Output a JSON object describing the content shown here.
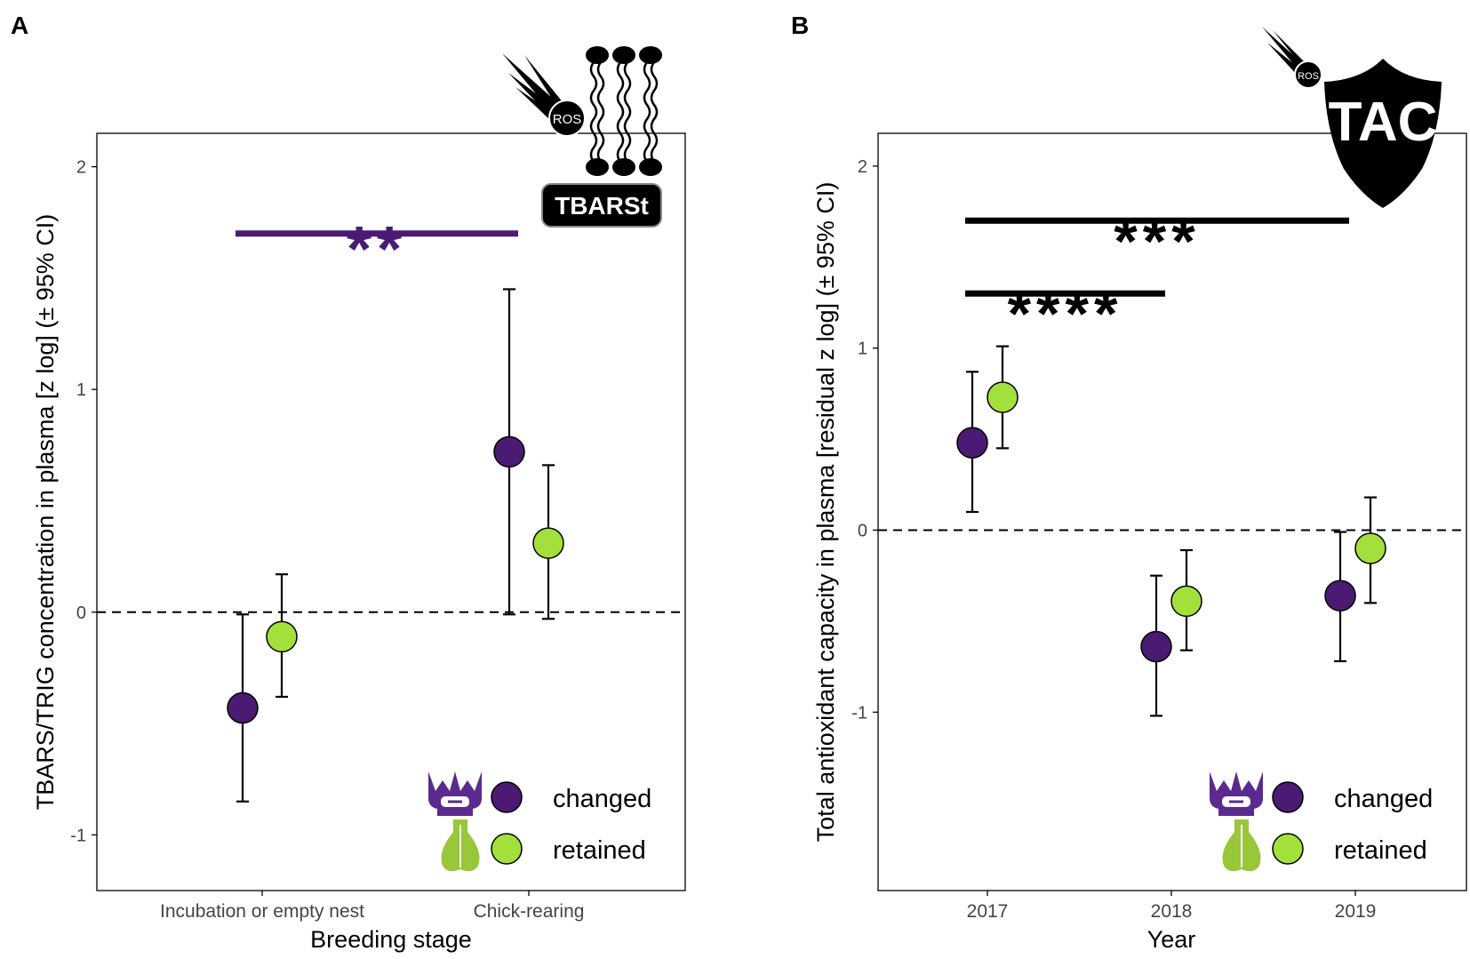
{
  "colors": {
    "changed": "#4b1a73",
    "retained": "#a4e03c",
    "sig_A": "#4b1a73",
    "sig_B": "#000000",
    "pigeon_purple": "#5b2a8f",
    "pigeon_green": "#98c73a"
  },
  "chart_data": [
    {
      "panel": "A",
      "type": "scatter",
      "title": "",
      "xlabel": "Breeding stage",
      "ylabel": "TBARS/TRIG concentration in plasma [z log] (± 95% CI)",
      "categories": [
        "Incubation or empty nest",
        "Chick-rearing"
      ],
      "ylim": [
        -1.25,
        2.15
      ],
      "yticks": [
        -1,
        0,
        1,
        2
      ],
      "ytick_labels": [
        "-1",
        "0",
        "1",
        "2"
      ],
      "reference_line": 0,
      "series": [
        {
          "name": "changed",
          "values": [
            -0.43,
            0.72
          ],
          "lower": [
            -0.85,
            -0.01
          ],
          "upper": [
            -0.01,
            1.45
          ]
        },
        {
          "name": "retained",
          "values": [
            -0.11,
            0.31
          ],
          "lower": [
            -0.38,
            -0.03
          ],
          "upper": [
            0.17,
            0.66
          ]
        }
      ],
      "significance": [
        {
          "label": "**",
          "from": "Incubation or empty nest",
          "to": "Chick-rearing",
          "y": 1.7
        }
      ],
      "icon_label": "TBARSt",
      "ros_label": "ROS",
      "legend": {
        "position": "bottom-right",
        "entries": [
          "changed",
          "retained"
        ]
      }
    },
    {
      "panel": "B",
      "type": "scatter",
      "title": "",
      "xlabel": "Year",
      "ylabel": "Total antioxidant capacity in plasma [residual z log] (± 95% CI)",
      "categories": [
        "2017",
        "2018",
        "2019"
      ],
      "ylim": [
        -1.98,
        2.18
      ],
      "yticks": [
        -1,
        0,
        1,
        2
      ],
      "ytick_labels": [
        "-1",
        "0",
        "1",
        "2"
      ],
      "reference_line": 0,
      "series": [
        {
          "name": "changed",
          "values": [
            0.48,
            -0.64,
            -0.36
          ],
          "lower": [
            0.1,
            -1.02,
            -0.72
          ],
          "upper": [
            0.87,
            -0.25,
            -0.01
          ]
        },
        {
          "name": "retained",
          "values": [
            0.73,
            -0.39,
            -0.1
          ],
          "lower": [
            0.45,
            -0.66,
            -0.4
          ],
          "upper": [
            1.01,
            -0.11,
            0.18
          ]
        }
      ],
      "significance": [
        {
          "label": "***",
          "from": "2017",
          "to": "2019",
          "y": 1.7
        },
        {
          "label": "****",
          "from": "2017",
          "to": "2018",
          "y": 1.3
        }
      ],
      "icon_label": "TAC",
      "ros_label": "ROS",
      "legend": {
        "position": "bottom-right",
        "entries": [
          "changed",
          "retained"
        ]
      }
    }
  ]
}
